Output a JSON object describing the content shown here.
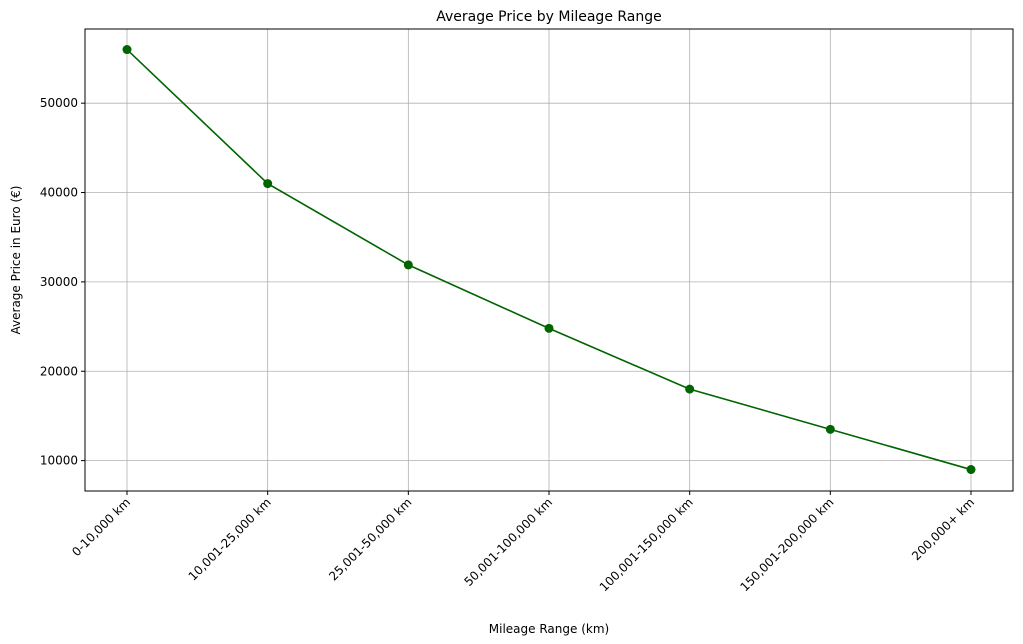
{
  "chart_data": {
    "type": "line",
    "title": "Average Price by Mileage Range",
    "xlabel": "Mileage Range (km)",
    "ylabel": "Average Price in Euro (€)",
    "categories": [
      "0-10,000 km",
      "10,001-25,000 km",
      "25,001-50,000 km",
      "50,001-100,000 km",
      "100,001-150,000 km",
      "150,001-200,000 km",
      "200,000+ km"
    ],
    "series": [
      {
        "values": [
          56000,
          41000,
          31900,
          24800,
          18000,
          13500,
          9000
        ]
      }
    ],
    "yticks": [
      10000,
      20000,
      30000,
      40000,
      50000
    ],
    "ylim": [
      6600,
      58300
    ],
    "grid": true,
    "line_color": "#006400",
    "marker": "circle"
  }
}
